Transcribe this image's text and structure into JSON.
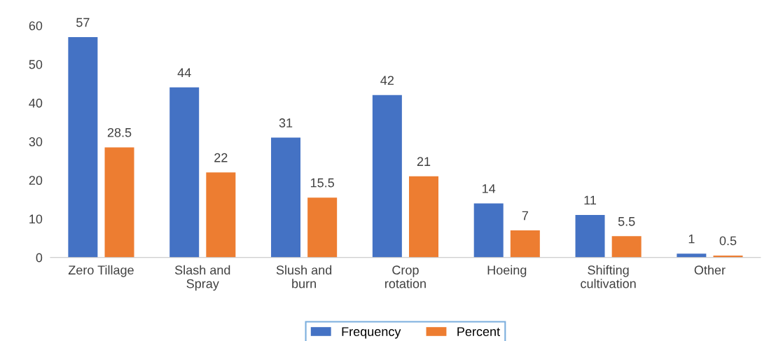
{
  "chart_data": {
    "type": "bar",
    "categories": [
      "Zero Tillage",
      "Slash and\nSpray",
      "Slush and\nburn",
      "Crop\nrotation",
      "Hoeing",
      "Shifting\ncultivation",
      "Other"
    ],
    "series": [
      {
        "name": "Frequency",
        "color": "#4472c4",
        "values": [
          57,
          44,
          31,
          42,
          14,
          11,
          1
        ]
      },
      {
        "name": "Percent",
        "color": "#ed7d31",
        "values": [
          28.5,
          22,
          15.5,
          21,
          7,
          5.5,
          0.5
        ]
      }
    ],
    "ylim": [
      0,
      60
    ],
    "yticks": [
      0,
      10,
      20,
      30,
      40,
      50,
      60
    ],
    "data_labels": true,
    "legend": "bottom",
    "grid": false
  }
}
